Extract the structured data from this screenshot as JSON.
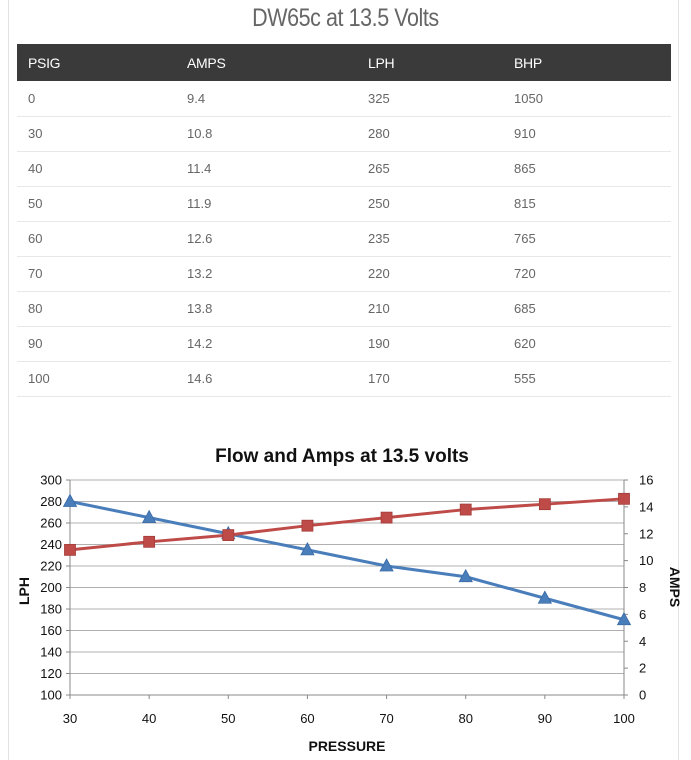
{
  "page": {
    "title": "DW65c at 13.5 Volts"
  },
  "table": {
    "headers": [
      "PSIG",
      "AMPS",
      "LPH",
      "BHP"
    ],
    "rows": [
      [
        "0",
        "9.4",
        "325",
        "1050"
      ],
      [
        "30",
        "10.8",
        "280",
        "910"
      ],
      [
        "40",
        "11.4",
        "265",
        "865"
      ],
      [
        "50",
        "11.9",
        "250",
        "815"
      ],
      [
        "60",
        "12.6",
        "235",
        "765"
      ],
      [
        "70",
        "13.2",
        "220",
        "720"
      ],
      [
        "80",
        "13.8",
        "210",
        "685"
      ],
      [
        "90",
        "14.2",
        "190",
        "620"
      ],
      [
        "100",
        "14.6",
        "170",
        "555"
      ]
    ]
  },
  "chart_data": {
    "type": "line",
    "title": "Flow and Amps at 13.5 volts",
    "xlabel": "PRESSURE",
    "ylabel": "LPH",
    "y2label": "AMPS",
    "x": [
      30,
      40,
      50,
      60,
      70,
      80,
      90,
      100
    ],
    "xlim": [
      30,
      100
    ],
    "ylim": [
      100,
      300
    ],
    "y2lim": [
      0,
      16
    ],
    "y_ticks": [
      100,
      120,
      140,
      160,
      180,
      200,
      220,
      240,
      260,
      280,
      300
    ],
    "y2_ticks": [
      0,
      2,
      4,
      6,
      8,
      10,
      12,
      14,
      16
    ],
    "grid": true,
    "legend": "none",
    "series": [
      {
        "axis": "left",
        "marker": "triangle",
        "color": "#4a7ebb",
        "values": [
          280,
          265,
          250,
          235,
          220,
          210,
          190,
          170
        ]
      },
      {
        "axis": "right",
        "marker": "square",
        "color": "#be4b48",
        "values": [
          10.8,
          11.4,
          11.9,
          12.6,
          13.2,
          13.8,
          14.2,
          14.6
        ]
      }
    ]
  }
}
